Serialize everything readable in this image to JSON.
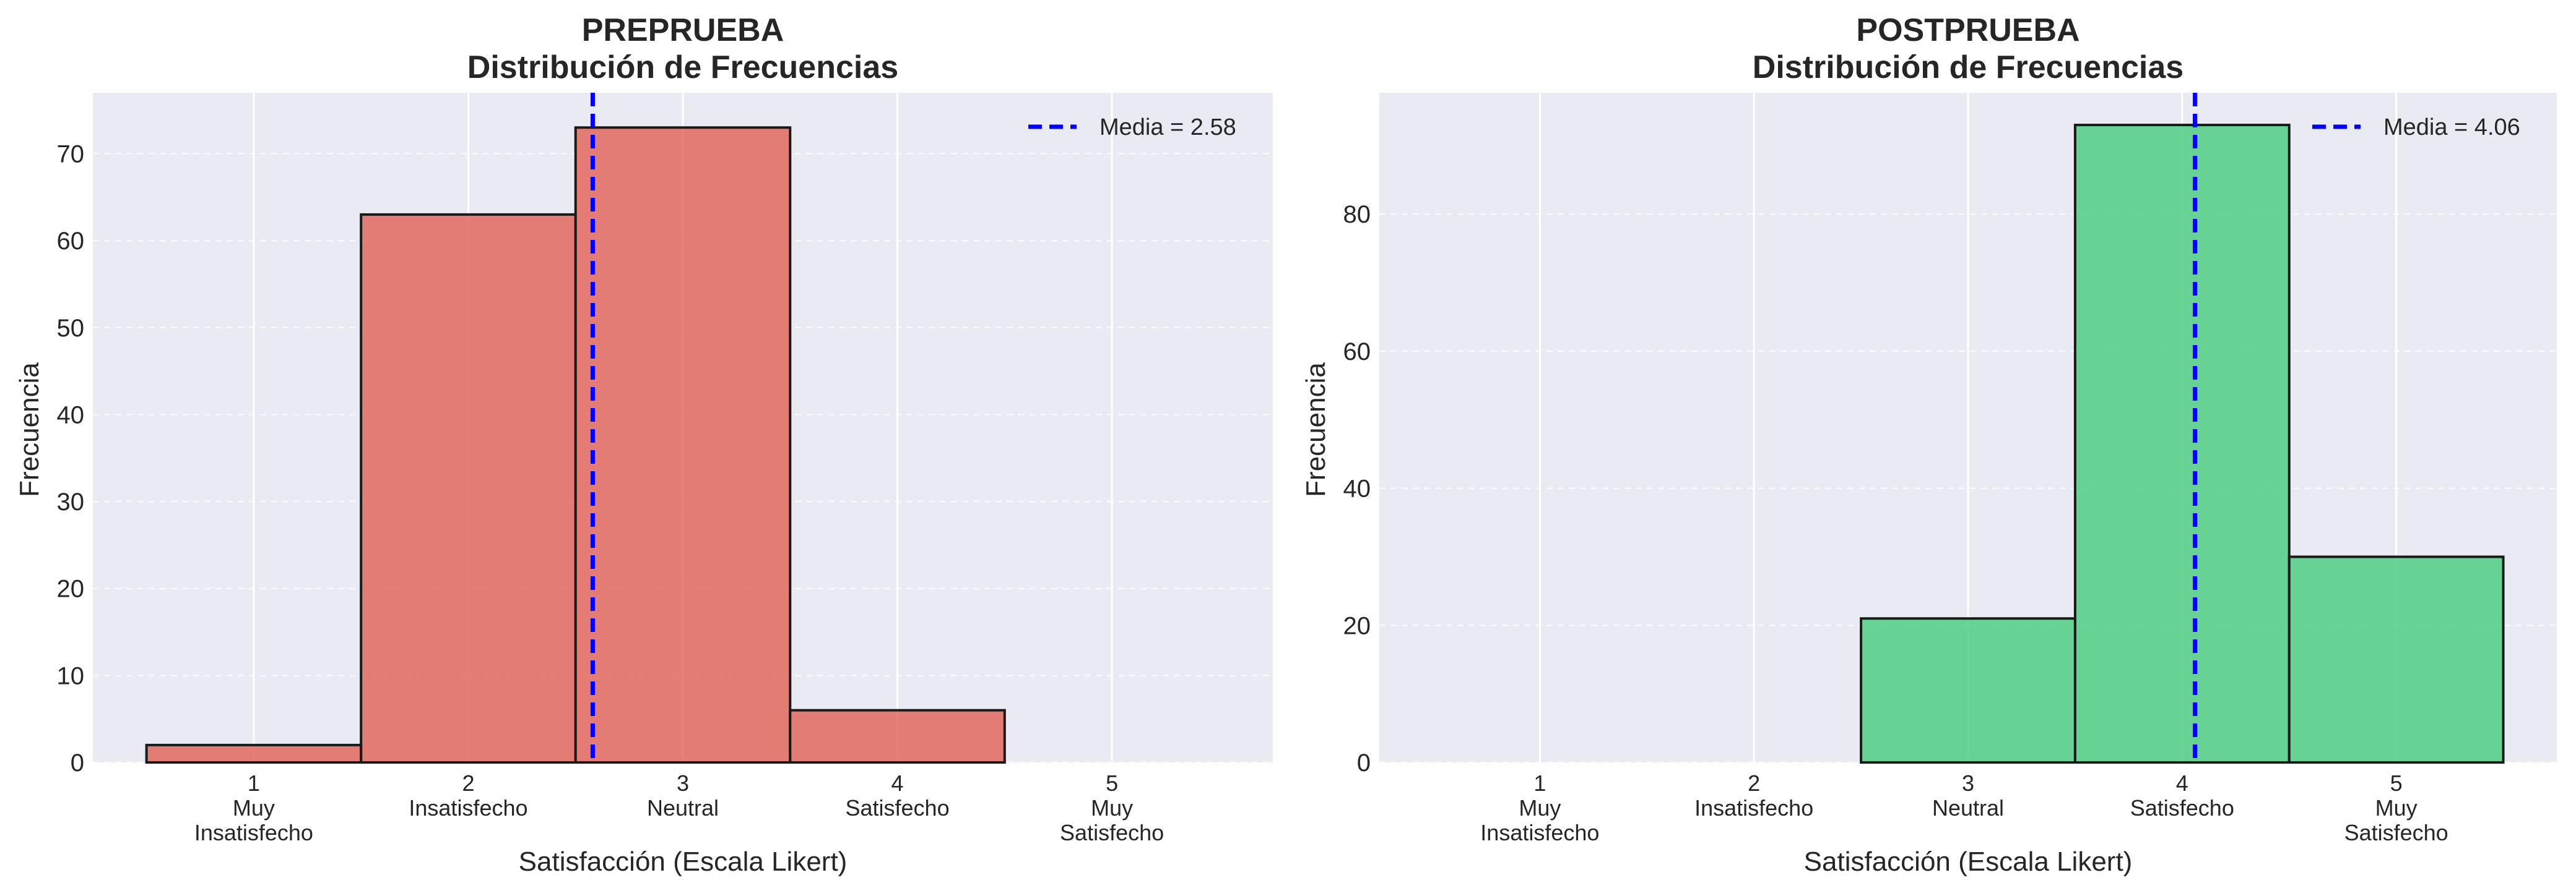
{
  "chart_data": [
    {
      "type": "bar",
      "title": "PREPRUEBA",
      "subtitle": "Distribución de Frecuencias",
      "xlabel": "Satisfacción (Escala Likert)",
      "ylabel": "Frecuencia",
      "categories": [
        "1",
        "2",
        "3",
        "4",
        "5"
      ],
      "category_labels": [
        [
          "1",
          "Muy",
          "Insatisfecho"
        ],
        [
          "2",
          "Insatisfecho"
        ],
        [
          "3",
          "Neutral"
        ],
        [
          "4",
          "Satisfecho"
        ],
        [
          "5",
          "Muy",
          "Satisfecho"
        ]
      ],
      "values": [
        2,
        63,
        73,
        6,
        0
      ],
      "ylim": [
        0,
        77
      ],
      "yticks": [
        0,
        10,
        20,
        30,
        40,
        50,
        60,
        70
      ],
      "mean": 2.58,
      "mean_label": "Media = 2.58",
      "bar_color": "#e06055",
      "mean_color": "#0000ff",
      "legend": "top-right",
      "grid": true
    },
    {
      "type": "bar",
      "title": "POSTPRUEBA",
      "subtitle": "Distribución de Frecuencias",
      "xlabel": "Satisfacción (Escala Likert)",
      "ylabel": "Frecuencia",
      "categories": [
        "1",
        "2",
        "3",
        "4",
        "5"
      ],
      "category_labels": [
        [
          "1",
          "Muy",
          "Insatisfecho"
        ],
        [
          "2",
          "Insatisfecho"
        ],
        [
          "3",
          "Neutral"
        ],
        [
          "4",
          "Satisfecho"
        ],
        [
          "5",
          "Muy",
          "Satisfecho"
        ]
      ],
      "values": [
        0,
        0,
        21,
        93,
        30
      ],
      "ylim": [
        0,
        97.7
      ],
      "yticks": [
        0,
        20,
        40,
        60,
        80
      ],
      "mean": 4.06,
      "mean_label": "Media = 4.06",
      "bar_color": "#45cc7c",
      "mean_color": "#0000ff",
      "legend": "top-right",
      "grid": true
    }
  ]
}
